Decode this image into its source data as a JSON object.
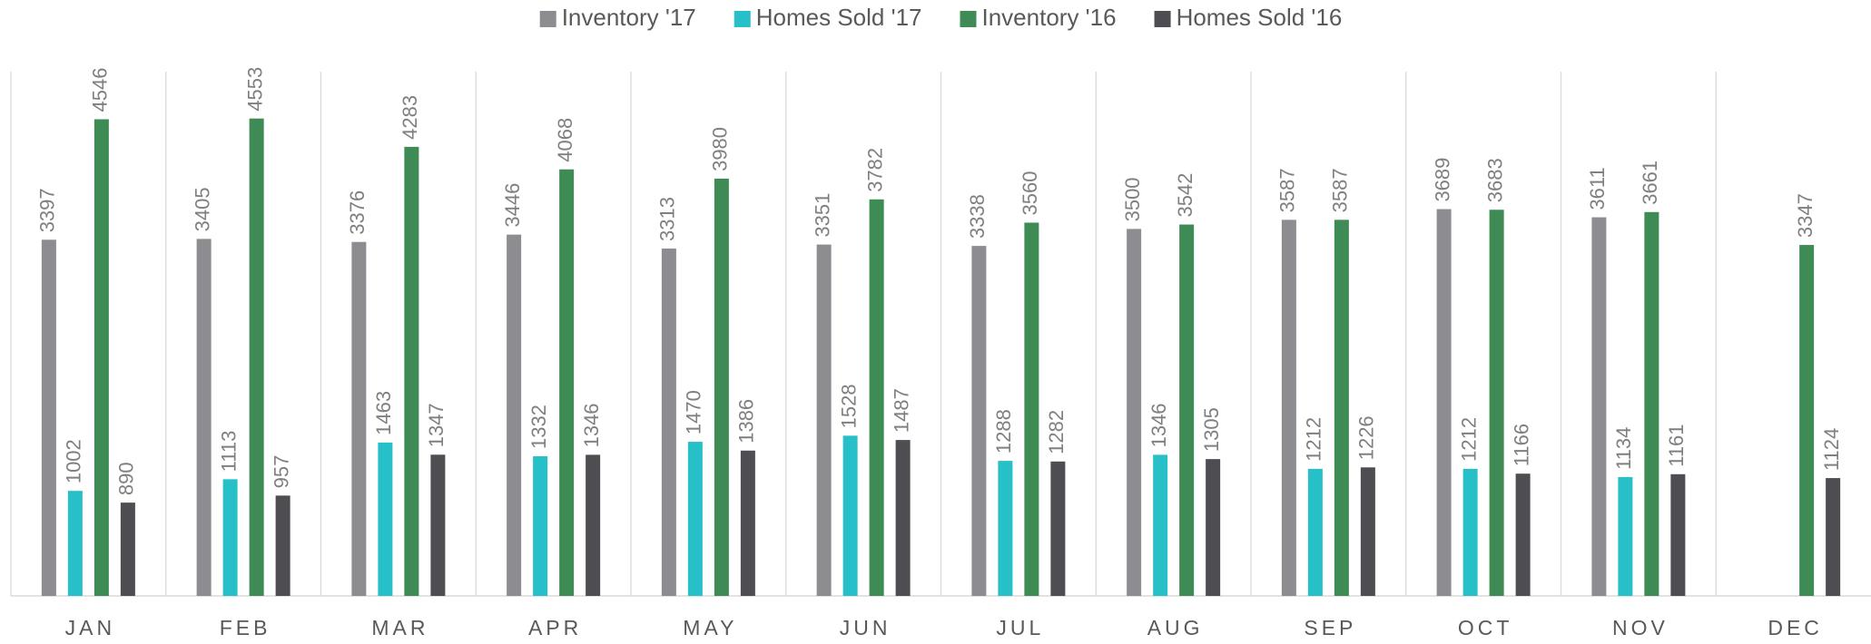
{
  "chart_data": {
    "type": "bar",
    "categories": [
      "JAN",
      "FEB",
      "MAR",
      "APR",
      "MAY",
      "JUN",
      "JUL",
      "AUG",
      "SEP",
      "OCT",
      "NOV",
      "DEC"
    ],
    "series": [
      {
        "name": "Inventory '17",
        "color": "#8c8c91",
        "values": [
          3397,
          3405,
          3376,
          3446,
          3313,
          3351,
          3338,
          3500,
          3587,
          3689,
          3611,
          null
        ]
      },
      {
        "name": "Homes Sold '17",
        "color": "#27c0c8",
        "values": [
          1002,
          1113,
          1463,
          1332,
          1470,
          1528,
          1288,
          1346,
          1212,
          1212,
          1134,
          null
        ]
      },
      {
        "name": "Inventory '16",
        "color": "#3e8b55",
        "values": [
          4546,
          4553,
          4283,
          4068,
          3980,
          3782,
          3560,
          3542,
          3587,
          3683,
          3661,
          3347
        ]
      },
      {
        "name": "Homes Sold '16",
        "color": "#4d4d52",
        "values": [
          890,
          957,
          1347,
          1346,
          1386,
          1487,
          1282,
          1305,
          1226,
          1166,
          1161,
          1124
        ]
      }
    ],
    "ylim": [
      0,
      5000
    ],
    "legend": "top"
  }
}
